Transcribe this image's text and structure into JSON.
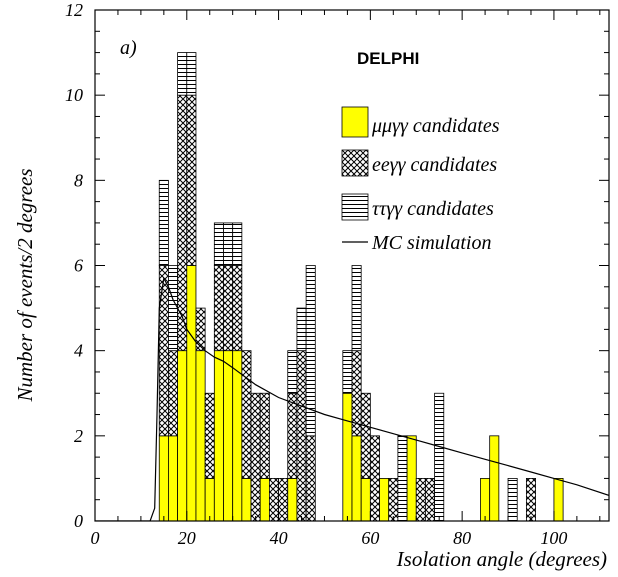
{
  "chart_data": {
    "type": "bar",
    "stacked": true,
    "panel_label": "a)",
    "experiment_label": "DELPHI",
    "xlabel": "Isolation angle (degrees)",
    "ylabel": "Number of events/2 degrees",
    "xlim": [
      0,
      112
    ],
    "ylim": [
      0,
      12
    ],
    "bin_width": 2,
    "x_ticks": [
      0,
      20,
      40,
      60,
      80,
      100
    ],
    "y_ticks": [
      0,
      2,
      4,
      6,
      8,
      10,
      12
    ],
    "grid": false,
    "legend_position": "top-right",
    "bin_edges_low": [
      14,
      16,
      18,
      20,
      22,
      24,
      26,
      28,
      30,
      32,
      34,
      36,
      38,
      40,
      42,
      44,
      46,
      48,
      50,
      52,
      54,
      56,
      58,
      60,
      62,
      64,
      66,
      68,
      70,
      72,
      74,
      76,
      78,
      80,
      82,
      84,
      86,
      88,
      90,
      92,
      94,
      96,
      98,
      100
    ],
    "series": [
      {
        "name": "μμγγ candidates",
        "fill": "#ffff00",
        "values": [
          2,
          2,
          4,
          6,
          4,
          1,
          4,
          4,
          4,
          1,
          0,
          1,
          0,
          0,
          1,
          0,
          0,
          0,
          0,
          0,
          3,
          2,
          1,
          0,
          1,
          0,
          0,
          2,
          0,
          0,
          0,
          0,
          0,
          0,
          0,
          1,
          2,
          0,
          0,
          0,
          0,
          0,
          0,
          1
        ]
      },
      {
        "name": "eeγγ candidates",
        "fill": "#ffffff",
        "values": [
          4,
          2,
          6,
          4,
          1,
          2,
          2,
          2,
          2,
          3,
          3,
          2,
          1,
          1,
          2,
          4,
          2,
          0,
          0,
          0,
          0,
          2,
          2,
          2,
          0,
          1,
          0,
          0,
          1,
          1,
          0,
          0,
          0,
          0,
          0,
          0,
          0,
          0,
          0,
          0,
          1,
          0,
          0,
          0
        ]
      },
      {
        "name": "ττγγ candidates",
        "fill": "#ffffff",
        "values": [
          2,
          2,
          1,
          1,
          0,
          0,
          1,
          1,
          1,
          0,
          0,
          0,
          0,
          0,
          1,
          1,
          4,
          0,
          0,
          0,
          1,
          2,
          0,
          0,
          0,
          0,
          2,
          0,
          0,
          0,
          3,
          0,
          0,
          0,
          0,
          0,
          0,
          0,
          1,
          0,
          0,
          0,
          0,
          0
        ]
      }
    ],
    "mc_simulation": {
      "name": "MC simulation",
      "x": [
        0,
        12,
        13,
        13.5,
        14,
        15,
        16,
        17,
        18,
        19,
        20,
        22,
        24,
        26,
        28,
        30,
        35,
        40,
        45,
        50,
        55,
        60,
        65,
        70,
        75,
        80,
        85,
        90,
        95,
        100,
        105,
        112
      ],
      "y": [
        0,
        0,
        0.3,
        2.5,
        5.0,
        5.7,
        5.5,
        5.2,
        5.0,
        4.8,
        4.5,
        4.2,
        4.0,
        3.85,
        3.75,
        3.6,
        3.2,
        2.9,
        2.7,
        2.5,
        2.35,
        2.2,
        2.05,
        1.9,
        1.75,
        1.6,
        1.45,
        1.3,
        1.15,
        1.0,
        0.85,
        0.6
      ]
    }
  }
}
